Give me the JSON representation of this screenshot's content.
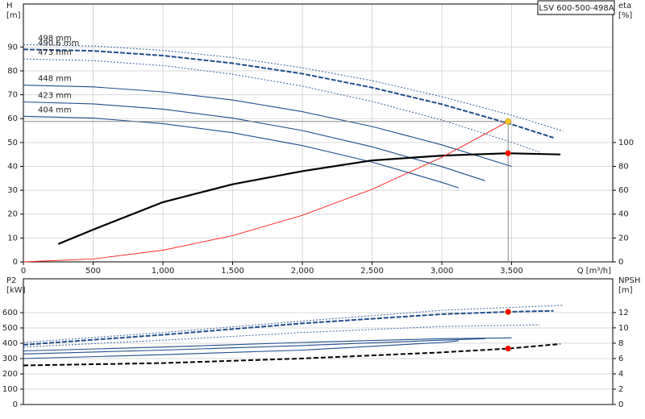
{
  "chart_data": [
    {
      "type": "line",
      "title": "LSV 600-500-498A",
      "y_label": [
        "H",
        "[m]"
      ],
      "y2_label": [
        "eta",
        "[%]"
      ],
      "x_label": "Q [m³/h]",
      "xlim": [
        0,
        4225
      ],
      "xticks": [
        0,
        500,
        {
          "value": 1000,
          "label": "1,000"
        },
        {
          "value": 1500,
          "label": "1,500"
        },
        {
          "value": 2000,
          "label": "2,000"
        },
        {
          "value": 2500,
          "label": "2,500"
        },
        {
          "value": 3000,
          "label": "3,000"
        },
        {
          "value": 3500,
          "label": "3,500"
        }
      ],
      "ylim": [
        0,
        108
      ],
      "yticks": [
        0,
        10,
        20,
        30,
        40,
        50,
        60,
        70,
        80,
        90
      ],
      "y2lim": [
        0,
        216
      ],
      "y2ticks": [
        0,
        20,
        40,
        60,
        80,
        100
      ],
      "grid": true,
      "series": [
        {
          "name": "498 mm",
          "color": "#4a6fa5",
          "style": "dotted",
          "x": [
            0,
            500,
            1000,
            1500,
            2000,
            2500,
            3000,
            3500,
            3870
          ],
          "values": [
            91,
            90.4,
            88.6,
            85.6,
            81.3,
            75.9,
            69.2,
            61.4,
            54.8
          ]
        },
        {
          "name": "490.6 mm",
          "color": "#1f4e8c",
          "style": "dashed",
          "x": [
            0,
            500,
            1000,
            1500,
            2000,
            2500,
            3000,
            3500,
            3800
          ],
          "values": [
            89,
            88.4,
            86.4,
            83.2,
            78.8,
            73,
            66,
            57.6,
            52
          ]
        },
        {
          "name": "473 mm",
          "color": "#4a6fa5",
          "style": "dotted",
          "x": [
            0,
            500,
            1000,
            1500,
            2000,
            2500,
            3000,
            3500,
            3700
          ],
          "values": [
            85,
            84.3,
            82.2,
            78.6,
            73.6,
            67.2,
            59.4,
            50.1,
            46
          ]
        },
        {
          "name": "448 mm",
          "color": "#1f4e8c",
          "style": "solid",
          "x": [
            0,
            500,
            1000,
            1500,
            2000,
            2500,
            3000,
            3500
          ],
          "values": [
            74,
            73.3,
            71.2,
            67.8,
            62.9,
            56.7,
            49,
            40
          ]
        },
        {
          "name": "423 mm",
          "color": "#1f4e8c",
          "style": "solid",
          "x": [
            0,
            500,
            1000,
            1500,
            2000,
            2500,
            3000,
            3310
          ],
          "values": [
            67,
            66.2,
            64,
            60.2,
            55,
            48.2,
            39.9,
            34
          ]
        },
        {
          "name": "404 mm",
          "color": "#1f4e8c",
          "style": "solid",
          "x": [
            0,
            500,
            1000,
            1500,
            2000,
            2500,
            3000,
            3120
          ],
          "values": [
            61,
            60.2,
            57.9,
            54.1,
            48.7,
            41.8,
            33.3,
            31
          ]
        },
        {
          "color": "#000000",
          "style": "thick",
          "axis": "y2",
          "x": [
            250,
            500,
            1000,
            1500,
            2000,
            2500,
            3000,
            3475,
            3850
          ],
          "values": [
            15,
            27,
            50,
            65,
            76,
            85,
            89,
            91,
            90
          ]
        },
        {
          "color": "#ff2020",
          "style": "thin",
          "x": [
            0,
            500,
            1000,
            1500,
            2000,
            2500,
            3000,
            3475
          ],
          "values": [
            0,
            1.2,
            4.9,
            11,
            19.5,
            30.4,
            43.8,
            58.8
          ]
        }
      ],
      "points": [
        {
          "x": 3475,
          "y": 58.8,
          "color": "#f5c518",
          "guide": true
        },
        {
          "x": 3475,
          "y": 91,
          "axis": "y2",
          "color": "#ff0000"
        }
      ]
    },
    {
      "type": "line",
      "y_label": [
        "P2",
        "[kW]"
      ],
      "y2_label": [
        "NPSH",
        "[m]"
      ],
      "xlim": [
        0,
        4225
      ],
      "ylim": [
        0,
        821
      ],
      "yticks": [
        0,
        100,
        200,
        300,
        400,
        500,
        600
      ],
      "y2lim": [
        0,
        16.4
      ],
      "y2ticks": [
        0,
        2,
        4,
        6,
        8,
        10,
        12
      ],
      "grid": true,
      "series": [
        {
          "color": "#4a6fa5",
          "style": "dotted",
          "x": [
            0,
            1000,
            2000,
            3000,
            3870
          ],
          "values": [
            405,
            470,
            545,
            615,
            648
          ]
        },
        {
          "color": "#1f4e8c",
          "style": "dashed",
          "x": [
            0,
            1000,
            2000,
            3000,
            3475,
            3800
          ],
          "values": [
            390,
            455,
            530,
            590,
            605,
            612
          ]
        },
        {
          "color": "#4a6fa5",
          "style": "dotted",
          "x": [
            0,
            1000,
            2000,
            3000,
            3700
          ],
          "values": [
            375,
            420,
            470,
            510,
            520
          ]
        },
        {
          "color": "#1f4e8c",
          "style": "solid",
          "x": [
            0,
            1000,
            2000,
            3000,
            3500
          ],
          "values": [
            350,
            375,
            405,
            430,
            435
          ]
        },
        {
          "color": "#1f4e8c",
          "style": "solid",
          "x": [
            0,
            1000,
            2000,
            3000,
            3310
          ],
          "values": [
            330,
            355,
            385,
            420,
            430
          ]
        },
        {
          "color": "#1f4e8c",
          "style": "solid",
          "x": [
            0,
            1000,
            2000,
            3000,
            3120
          ],
          "values": [
            300,
            325,
            355,
            405,
            415
          ]
        },
        {
          "color": "#000000",
          "style": "thickdash",
          "axis": "y2",
          "x": [
            0,
            1000,
            2000,
            3000,
            3475,
            3850
          ],
          "values": [
            5.1,
            5.4,
            6,
            6.8,
            7.3,
            7.9
          ]
        }
      ],
      "points": [
        {
          "x": 3475,
          "y": 605,
          "color": "#ff0000"
        },
        {
          "x": 3475,
          "y": 7.3,
          "axis": "y2",
          "color": "#ff0000"
        }
      ]
    }
  ]
}
